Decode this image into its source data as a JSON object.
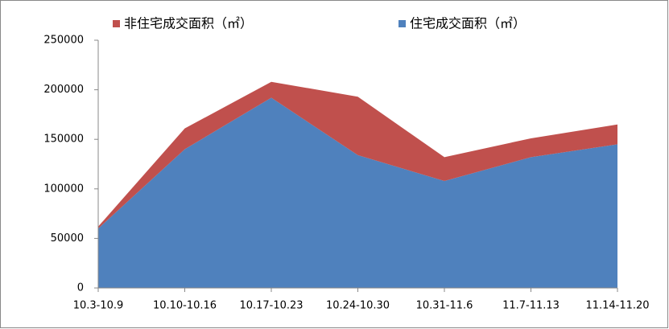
{
  "chart_data": {
    "type": "area",
    "categories": [
      "10.3-10.9",
      "10.10-10.16",
      "10.17-10.23",
      "10.24-10.30",
      "10.31-11.6",
      "11.7-11.13",
      "11.14-11.20"
    ],
    "series": [
      {
        "name": "非住宅成交面积（㎡）",
        "color": "#c0504d",
        "values": [
          2000,
          21000,
          16000,
          59000,
          24000,
          19000,
          20000
        ]
      },
      {
        "name": "住宅成交面积（㎡）",
        "color": "#4f81bd",
        "values": [
          60000,
          140000,
          192000,
          134000,
          108000,
          132000,
          145000
        ]
      }
    ],
    "stacked": true,
    "ylim": [
      0,
      250000
    ],
    "yticks": [
      0,
      50000,
      100000,
      150000,
      200000,
      250000
    ],
    "grid": false,
    "legend": "top"
  }
}
